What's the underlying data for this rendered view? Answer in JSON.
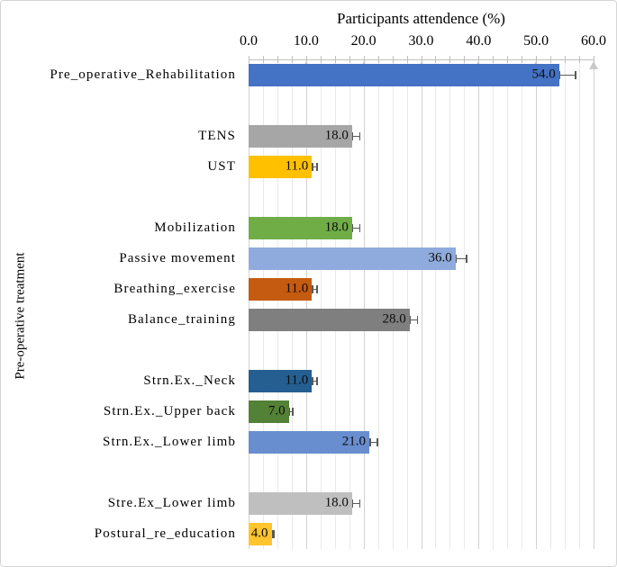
{
  "figure": {
    "title": "Participants attendence (%)",
    "y_axis_label": "Pre-operative treatment"
  },
  "chart_data": {
    "type": "bar",
    "orientation": "horizontal",
    "title": "Participants attendence (%)",
    "xlabel": "Participants attendence (%)",
    "ylabel": "Pre-operative treatment",
    "xlim": [
      0,
      60
    ],
    "x_tick_values": [
      0,
      10,
      20,
      30,
      40,
      50,
      60
    ],
    "x_tick_labels": [
      "0.0",
      "10.0",
      "20.0",
      "30.0",
      "40.0",
      "50.0",
      "60.0"
    ],
    "minor_grid_step": 2.5,
    "grid": true,
    "legend": false,
    "total_rows": 16,
    "axis_position": "top",
    "bars": [
      {
        "label": "Pre_operative_Rehabilitation",
        "value": 54.0,
        "display": "54.0",
        "error": 3.0,
        "color": "#4472C4",
        "row": 0
      },
      {
        "label": "TENS",
        "value": 18.0,
        "display": "18.0",
        "error": 1.5,
        "color": "#A6A6A6",
        "row": 2
      },
      {
        "label": "UST",
        "value": 11.0,
        "display": "11.0",
        "error": 1.0,
        "color": "#FFC000",
        "row": 3
      },
      {
        "label": "Mobilization",
        "value": 18.0,
        "display": "18.0",
        "error": 1.5,
        "color": "#70AD47",
        "row": 5
      },
      {
        "label": "Passive movement",
        "value": 36.0,
        "display": "36.0",
        "error": 2.0,
        "color": "#8FAADC",
        "row": 6
      },
      {
        "label": "Breathing_exercise",
        "value": 11.0,
        "display": "11.0",
        "error": 1.0,
        "color": "#C55A11",
        "row": 7
      },
      {
        "label": "Balance_training",
        "value": 28.0,
        "display": "28.0",
        "error": 1.5,
        "color": "#7F7F7F",
        "row": 8
      },
      {
        "label": "Strn.Ex._Neck",
        "value": 11.0,
        "display": "11.0",
        "error": 1.0,
        "color": "#255E91",
        "row": 10
      },
      {
        "label": "Strn.Ex._Upper back",
        "value": 7.0,
        "display": "7.0",
        "error": 0.8,
        "color": "#538135",
        "row": 11
      },
      {
        "label": "Strn.Ex._Lower limb",
        "value": 21.0,
        "display": "21.0",
        "error": 1.5,
        "color": "#698ED0",
        "row": 12
      },
      {
        "label": "Stre.Ex_Lower limb",
        "value": 18.0,
        "display": "18.0",
        "error": 1.5,
        "color": "#BFBFBF",
        "row": 14
      },
      {
        "label": "Postural_re_education",
        "value": 4.0,
        "display": "4.0",
        "error": 0.5,
        "color": "#FFC42E",
        "row": 15
      }
    ]
  }
}
